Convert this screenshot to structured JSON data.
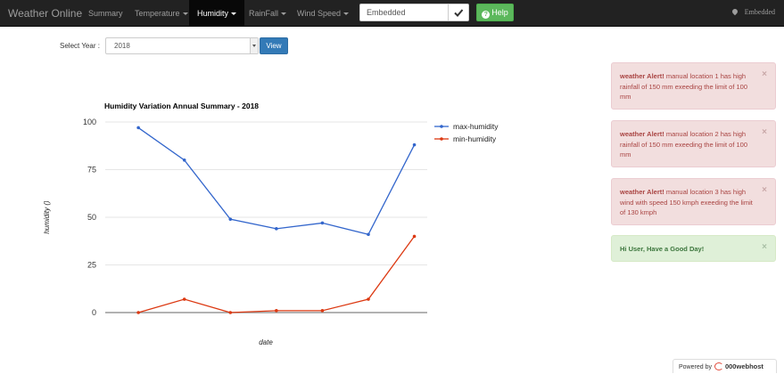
{
  "navbar": {
    "brand": "Weather Online",
    "items": [
      {
        "label": "Summary"
      },
      {
        "label": "Temperature"
      },
      {
        "label": "Humidity"
      },
      {
        "label": "RainFall"
      },
      {
        "label": "Wind Speed"
      }
    ],
    "search": {
      "value": "Embedded"
    },
    "help_label": "Help",
    "location": "Embedded"
  },
  "filter": {
    "year_label": "Select Year :",
    "year_value": "2018",
    "view_label": "View"
  },
  "chart_data": {
    "type": "line",
    "title": "Humidity Variation Annual Summary - 2018",
    "xlabel": "date",
    "ylabel": "humidity ()",
    "ylim": [
      0,
      100
    ],
    "yticks": [
      0,
      25,
      50,
      75,
      100
    ],
    "grid": true,
    "legend": "right",
    "x": [
      1,
      2,
      3,
      4,
      5,
      6,
      7
    ],
    "series": [
      {
        "name": "max-humidity",
        "color": "#3366cc",
        "values": [
          97,
          80,
          49,
          44,
          47,
          41,
          88
        ]
      },
      {
        "name": "min-humidity",
        "color": "#dc3912",
        "values": [
          0,
          7,
          0,
          1,
          1,
          7,
          40
        ]
      }
    ]
  },
  "alerts": [
    {
      "type": "danger",
      "title": "weather Alert!",
      "text": "manual location 1 has high rainfall of 150 mm exeeding the limit of 100 mm"
    },
    {
      "type": "danger",
      "title": "weather Alert!",
      "text": "manual location 2 has high rainfall of 150 mm exeeding the limit of 100 mm"
    },
    {
      "type": "danger",
      "title": "weather Alert!",
      "text": "manual location 3 has high wind with speed 150 kmph exeeding the limit of 130 kmph"
    },
    {
      "type": "success",
      "text": "Hi User, Have a Good Day!"
    }
  ],
  "footer": {
    "powered_by": "Powered by",
    "host": "000webhost"
  }
}
